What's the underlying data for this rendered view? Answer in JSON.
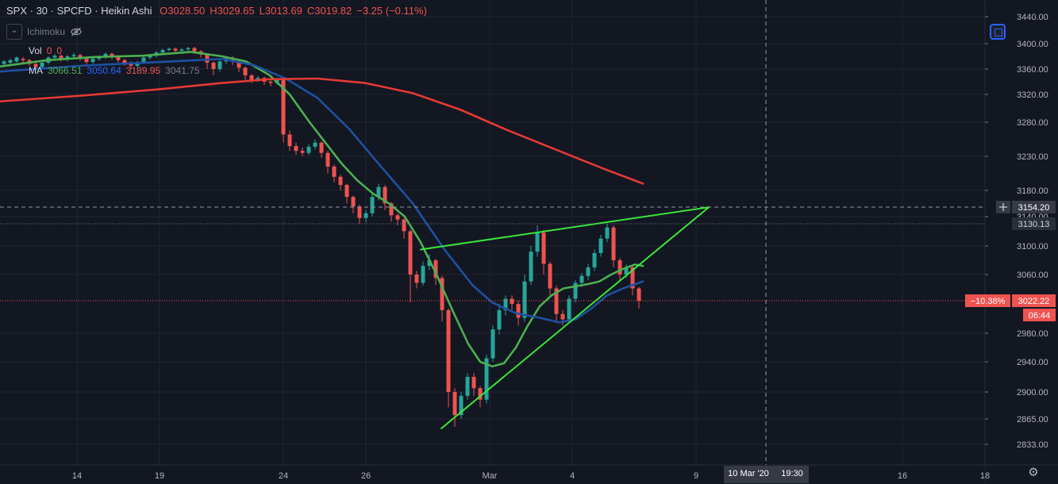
{
  "header": {
    "symbol": "SPX · 30 · SPCFD · Heikin Ashi",
    "open": "O3028.50",
    "high": "H3029.65",
    "low": "L3013.69",
    "close": "C3019.82",
    "change": "−3.25 (−0.11%)"
  },
  "indicators": {
    "ichimoku_label": "Ichimoku",
    "vol_label": "Vol",
    "vol_value": "0",
    "vol_value2": "0",
    "ma_label": "MA",
    "ma_values": [
      "3066.51",
      "3050.64",
      "3189.95",
      "3041.75"
    ]
  },
  "colors": {
    "background": "#131722",
    "up": "#26a69a",
    "down": "#ef5350",
    "ma_fast": "#4caf50",
    "ma_mid": "#1e50a0",
    "ma_slow": "#e53935",
    "trendline": "#39e639",
    "grid": "#1f2430",
    "axis_text": "#b2b5be",
    "accent": "#2962ff"
  },
  "icons": {
    "collapse": "chevron-down-icon",
    "visibility": "eye-off-icon",
    "chart_mode": "screen-icon",
    "crosshair": "plus-icon",
    "settings": "gear-icon"
  },
  "chart_data": {
    "type": "candlestick",
    "chart_style": "Heikin Ashi",
    "timeframe": "30",
    "y_axis": {
      "range": [
        2815,
        3465
      ],
      "tick_labels": [
        "3440.00",
        "3400.00",
        "3360.00",
        "3320.00",
        "3280.00",
        "3230.00",
        "3180.00",
        "3140.00",
        "3100.00",
        "3060.00",
        "2980.00",
        "2940.00",
        "2900.00",
        "2865.00",
        "2833.00"
      ]
    },
    "x_axis": {
      "range": [
        0,
        1240
      ],
      "tick_labels": [
        {
          "label": "14",
          "x": 97
        },
        {
          "label": "19",
          "x": 201
        },
        {
          "label": "24",
          "x": 357
        },
        {
          "label": "26",
          "x": 461
        },
        {
          "label": "Mar",
          "x": 617
        },
        {
          "label": "4",
          "x": 721
        },
        {
          "label": "9",
          "x": 877
        },
        {
          "label": "16",
          "x": 1137
        },
        {
          "label": "18",
          "x": 1241
        }
      ],
      "crosshair_label": "10 Mar '20",
      "crosshair_time": "19:30",
      "crosshair_x": 965
    },
    "price_labels": {
      "crosshair_price": "3154.20",
      "high_line": "3130.13",
      "last_price": "3022.22",
      "last_change": "−10.38%",
      "countdown": "06:44"
    },
    "series": [
      {
        "name": "MA",
        "color": "#4caf50",
        "points": [
          [
            0,
            3364
          ],
          [
            60,
            3374
          ],
          [
            120,
            3379
          ],
          [
            180,
            3381
          ],
          [
            240,
            3387
          ],
          [
            280,
            3380
          ],
          [
            310,
            3372
          ],
          [
            340,
            3350
          ],
          [
            365,
            3320
          ],
          [
            390,
            3280
          ],
          [
            410,
            3250
          ],
          [
            430,
            3220
          ],
          [
            450,
            3195
          ],
          [
            470,
            3175
          ],
          [
            490,
            3160
          ],
          [
            510,
            3140
          ],
          [
            530,
            3105
          ],
          [
            550,
            3060
          ],
          [
            570,
            3010
          ],
          [
            590,
            2965
          ],
          [
            605,
            2940
          ],
          [
            620,
            2934
          ],
          [
            635,
            2938
          ],
          [
            650,
            2960
          ],
          [
            665,
            2990
          ],
          [
            680,
            3015
          ],
          [
            695,
            3030
          ],
          [
            710,
            3040
          ],
          [
            725,
            3043
          ],
          [
            740,
            3046
          ],
          [
            755,
            3050
          ],
          [
            770,
            3060
          ],
          [
            785,
            3068
          ],
          [
            800,
            3074
          ],
          [
            810,
            3072
          ]
        ]
      },
      {
        "name": "MA",
        "color": "#1e50a0",
        "points": [
          [
            0,
            3356
          ],
          [
            100,
            3365
          ],
          [
            200,
            3371
          ],
          [
            280,
            3376
          ],
          [
            320,
            3366
          ],
          [
            360,
            3345
          ],
          [
            400,
            3315
          ],
          [
            440,
            3270
          ],
          [
            480,
            3215
          ],
          [
            520,
            3160
          ],
          [
            560,
            3095
          ],
          [
            595,
            3045
          ],
          [
            620,
            3020
          ],
          [
            650,
            3006
          ],
          [
            680,
            3000
          ],
          [
            705,
            2994
          ],
          [
            725,
            2998
          ],
          [
            745,
            3012
          ],
          [
            765,
            3030
          ],
          [
            785,
            3040
          ],
          [
            800,
            3046
          ],
          [
            810,
            3050
          ]
        ]
      },
      {
        "name": "MA",
        "color": "#e53935",
        "points": [
          [
            0,
            3310
          ],
          [
            100,
            3318
          ],
          [
            200,
            3328
          ],
          [
            280,
            3338
          ],
          [
            340,
            3344
          ],
          [
            400,
            3345
          ],
          [
            460,
            3338
          ],
          [
            520,
            3322
          ],
          [
            580,
            3298
          ],
          [
            640,
            3268
          ],
          [
            700,
            3240
          ],
          [
            760,
            3212
          ],
          [
            810,
            3190
          ]
        ]
      },
      {
        "name": "trendline upper",
        "color": "#39e639",
        "points": [
          [
            530,
            3095
          ],
          [
            893,
            3154
          ]
        ]
      },
      {
        "name": "trendline lower",
        "color": "#39e639",
        "points": [
          [
            556,
            2853
          ],
          [
            893,
            3154
          ]
        ]
      }
    ],
    "candles": [
      [
        5,
        3368,
        3372,
        3366,
        3374
      ],
      [
        13,
        3370,
        3374,
        3366,
        3376
      ],
      [
        21,
        3372,
        3378,
        3370,
        3380
      ],
      [
        29,
        3376,
        3374,
        3370,
        3379
      ],
      [
        37,
        3374,
        3368,
        3365,
        3376
      ],
      [
        45,
        3368,
        3363,
        3358,
        3370
      ],
      [
        53,
        3363,
        3370,
        3360,
        3372
      ],
      [
        61,
        3370,
        3378,
        3367,
        3380
      ],
      [
        69,
        3378,
        3381,
        3374,
        3384
      ],
      [
        77,
        3381,
        3376,
        3372,
        3383
      ],
      [
        85,
        3376,
        3380,
        3372,
        3382
      ],
      [
        93,
        3380,
        3382,
        3377,
        3386
      ],
      [
        101,
        3382,
        3376,
        3373,
        3384
      ],
      [
        109,
        3376,
        3371,
        3367,
        3378
      ],
      [
        117,
        3371,
        3376,
        3368,
        3378
      ],
      [
        125,
        3376,
        3379,
        3373,
        3381
      ],
      [
        133,
        3379,
        3384,
        3376,
        3386
      ],
      [
        141,
        3384,
        3379,
        3375,
        3386
      ],
      [
        149,
        3379,
        3374,
        3370,
        3381
      ],
      [
        157,
        3374,
        3370,
        3365,
        3376
      ],
      [
        165,
        3370,
        3365,
        3360,
        3372
      ],
      [
        173,
        3365,
        3371,
        3362,
        3373
      ],
      [
        181,
        3371,
        3378,
        3368,
        3380
      ],
      [
        189,
        3378,
        3381,
        3375,
        3384
      ],
      [
        197,
        3381,
        3386,
        3378,
        3389
      ],
      [
        205,
        3386,
        3390,
        3383,
        3392
      ],
      [
        213,
        3390,
        3392,
        3388,
        3394
      ],
      [
        221,
        3392,
        3389,
        3386,
        3394
      ],
      [
        229,
        3389,
        3391,
        3386,
        3393
      ],
      [
        237,
        3391,
        3393,
        3388,
        3395
      ],
      [
        245,
        3393,
        3388,
        3384,
        3395
      ],
      [
        253,
        3388,
        3383,
        3378,
        3390
      ],
      [
        261,
        3383,
        3370,
        3360,
        3385
      ],
      [
        269,
        3370,
        3360,
        3350,
        3372
      ],
      [
        277,
        3360,
        3372,
        3356,
        3374
      ],
      [
        285,
        3372,
        3378,
        3368,
        3380
      ],
      [
        293,
        3378,
        3372,
        3366,
        3380
      ],
      [
        301,
        3372,
        3362,
        3355,
        3374
      ],
      [
        309,
        3362,
        3350,
        3343,
        3364
      ],
      [
        317,
        3350,
        3343,
        3338,
        3352
      ],
      [
        325,
        3343,
        3346,
        3340,
        3349
      ],
      [
        333,
        3346,
        3340,
        3335,
        3348
      ],
      [
        341,
        3340,
        3338,
        3333,
        3343
      ],
      [
        349,
        3338,
        3344,
        3335,
        3346
      ],
      [
        357,
        3344,
        3262,
        3250,
        3346
      ],
      [
        365,
        3262,
        3245,
        3238,
        3268
      ],
      [
        373,
        3245,
        3238,
        3232,
        3250
      ],
      [
        381,
        3238,
        3235,
        3230,
        3243
      ],
      [
        389,
        3235,
        3244,
        3232,
        3248
      ],
      [
        397,
        3244,
        3250,
        3240,
        3255
      ],
      [
        405,
        3250,
        3235,
        3228,
        3252
      ],
      [
        413,
        3235,
        3215,
        3205,
        3238
      ],
      [
        421,
        3215,
        3200,
        3192,
        3218
      ],
      [
        429,
        3200,
        3188,
        3180,
        3203
      ],
      [
        437,
        3188,
        3170,
        3160,
        3190
      ],
      [
        445,
        3170,
        3155,
        3145,
        3172
      ],
      [
        453,
        3155,
        3138,
        3130,
        3158
      ],
      [
        461,
        3138,
        3145,
        3132,
        3150
      ],
      [
        469,
        3145,
        3170,
        3140,
        3176
      ],
      [
        477,
        3170,
        3185,
        3165,
        3190
      ],
      [
        485,
        3185,
        3160,
        3150,
        3188
      ],
      [
        493,
        3160,
        3142,
        3133,
        3162
      ],
      [
        501,
        3142,
        3136,
        3128,
        3145
      ],
      [
        509,
        3136,
        3120,
        3110,
        3138
      ],
      [
        517,
        3120,
        3060,
        3020,
        3122
      ],
      [
        525,
        3060,
        3048,
        3040,
        3065
      ],
      [
        533,
        3048,
        3072,
        3044,
        3078
      ],
      [
        541,
        3072,
        3080,
        3066,
        3088
      ],
      [
        549,
        3080,
        3055,
        3045,
        3082
      ],
      [
        557,
        3055,
        3010,
        2995,
        3058
      ],
      [
        565,
        3010,
        2900,
        2880,
        3012
      ],
      [
        573,
        2900,
        2870,
        2855,
        2905
      ],
      [
        581,
        2870,
        2895,
        2865,
        2900
      ],
      [
        589,
        2895,
        2920,
        2890,
        2925
      ],
      [
        597,
        2920,
        2905,
        2895,
        2925
      ],
      [
        605,
        2905,
        2890,
        2880,
        2908
      ],
      [
        613,
        2890,
        2945,
        2885,
        2950
      ],
      [
        621,
        2945,
        2985,
        2940,
        2990
      ],
      [
        629,
        2985,
        3010,
        2978,
        3018
      ],
      [
        637,
        3010,
        3025,
        3003,
        3030
      ],
      [
        645,
        3025,
        3018,
        3010,
        3030
      ],
      [
        653,
        3018,
        3000,
        2990,
        3022
      ],
      [
        661,
        3000,
        3050,
        2995,
        3060
      ],
      [
        669,
        3050,
        3092,
        3045,
        3100
      ],
      [
        677,
        3092,
        3118,
        3085,
        3128
      ],
      [
        685,
        3118,
        3075,
        3060,
        3122
      ],
      [
        693,
        3075,
        3040,
        3030,
        3078
      ],
      [
        701,
        3040,
        3005,
        2993,
        3044
      ],
      [
        709,
        3005,
        2998,
        2990,
        3010
      ],
      [
        717,
        2998,
        3025,
        2995,
        3030
      ],
      [
        725,
        3025,
        3048,
        3020,
        3052
      ],
      [
        733,
        3048,
        3058,
        3042,
        3062
      ],
      [
        741,
        3058,
        3070,
        3052,
        3075
      ],
      [
        749,
        3070,
        3090,
        3065,
        3095
      ],
      [
        757,
        3090,
        3110,
        3085,
        3115
      ],
      [
        765,
        3110,
        3125,
        3105,
        3130
      ],
      [
        773,
        3125,
        3080,
        3070,
        3128
      ],
      [
        781,
        3080,
        3060,
        3050,
        3083
      ],
      [
        789,
        3060,
        3070,
        3055,
        3074
      ],
      [
        797,
        3070,
        3040,
        3030,
        3073
      ],
      [
        805,
        3040,
        3022,
        3012,
        3042
      ]
    ]
  }
}
